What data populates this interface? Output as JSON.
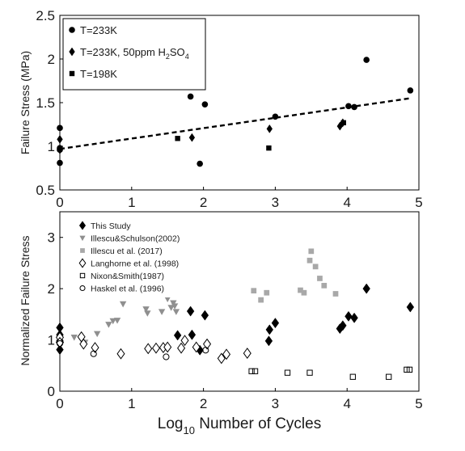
{
  "chart_data": [
    {
      "type": "scatter",
      "xlim": [
        0,
        5
      ],
      "ylim": [
        0.5,
        2.5
      ],
      "xticks": [
        "0",
        "1",
        "2",
        "3",
        "4",
        "5"
      ],
      "yticks": [
        "0.5",
        "1",
        "1.5",
        "2",
        "2.5"
      ],
      "ylabel": "Failure Stress (MPa)",
      "legend_position": "top-left",
      "grid": false,
      "series": [
        {
          "name_parts": [
            "T=233K"
          ],
          "marker": "circle",
          "color": "#000000",
          "x": [
            0,
            0,
            0,
            0,
            1.82,
            1.95,
            2.02,
            3.0,
            4.02,
            4.1,
            4.27,
            4.88
          ],
          "y": [
            1.21,
            0.98,
            0.96,
            0.81,
            1.57,
            0.8,
            1.48,
            1.34,
            1.46,
            1.45,
            1.99,
            1.64
          ]
        },
        {
          "name_parts": [
            "T=233K, 50ppm H",
            "2",
            "SO",
            "4"
          ],
          "marker": "diamond",
          "color": "#000000",
          "x": [
            0,
            0,
            1.84,
            2.92,
            3.9,
            3.94
          ],
          "y": [
            1.08,
            0.96,
            1.1,
            1.2,
            1.23,
            1.27
          ]
        },
        {
          "name_parts": [
            "T=198K"
          ],
          "marker": "square",
          "color": "#000000",
          "x": [
            1.64,
            2.91,
            3.95
          ],
          "y": [
            1.09,
            0.98,
            1.27
          ]
        }
      ],
      "trendline": {
        "style": "dashed",
        "x": [
          0,
          4.88
        ],
        "y": [
          0.97,
          1.55
        ]
      }
    },
    {
      "type": "scatter",
      "xlim": [
        0,
        5
      ],
      "ylim": [
        0,
        3.5
      ],
      "xticks": [
        "0",
        "1",
        "2",
        "3",
        "4",
        "5"
      ],
      "yticks": [
        "0",
        "1",
        "2",
        "3"
      ],
      "ylabel": "Normalized Failure Stress",
      "xlabel_parts": [
        "Log",
        "10",
        " Number of Cycles"
      ],
      "legend_position": "top-left",
      "grid": false,
      "series": [
        {
          "name": "This Study",
          "marker": "diamond-filled",
          "color": "#000000",
          "x": [
            0,
            0,
            0,
            0,
            0,
            1.64,
            1.82,
            1.84,
            1.95,
            2.02,
            2.91,
            2.92,
            3.0,
            3.9,
            3.94,
            4.02,
            4.1,
            4.27,
            4.88
          ],
          "y": [
            1.24,
            1.1,
            0.98,
            0.96,
            0.81,
            1.09,
            1.56,
            1.1,
            0.8,
            1.48,
            0.98,
            1.2,
            1.33,
            1.22,
            1.28,
            1.46,
            1.43,
            2.0,
            1.64
          ]
        },
        {
          "name": "Illescu&Schulson(2002)",
          "marker": "triangle-down",
          "color": "#8f8f8f",
          "x": [
            0.2,
            0.35,
            0.52,
            0.68,
            0.74,
            0.8,
            0.88,
            1.2,
            1.22,
            1.42,
            1.5,
            1.55,
            1.58,
            1.6,
            1.62
          ],
          "y": [
            1.05,
            0.95,
            1.12,
            1.3,
            1.37,
            1.38,
            1.7,
            1.6,
            1.52,
            1.55,
            1.8,
            1.63,
            1.72,
            1.66,
            1.55
          ]
        },
        {
          "name": "Illescu et al. (2017)",
          "marker": "square",
          "color": "#a8a8a8",
          "x": [
            2.7,
            2.8,
            2.88,
            3.35,
            3.4,
            3.48,
            3.5,
            3.56,
            3.62,
            3.68,
            3.84
          ],
          "y": [
            1.96,
            1.78,
            1.92,
            1.97,
            1.92,
            2.55,
            2.73,
            2.43,
            2.2,
            2.06,
            1.9
          ]
        },
        {
          "name": "Langhorne et al. (1998)",
          "marker": "diamond-open",
          "color": "#000000",
          "x": [
            0,
            0,
            0.3,
            0.33,
            0.49,
            0.85,
            1.23,
            1.34,
            1.44,
            1.5,
            1.69,
            1.74,
            1.9,
            2.05,
            2.25,
            2.32,
            2.61
          ],
          "y": [
            1.05,
            0.95,
            1.06,
            0.92,
            0.85,
            0.73,
            0.83,
            0.84,
            0.85,
            0.86,
            0.84,
            0.99,
            0.86,
            0.92,
            0.64,
            0.72,
            0.74
          ]
        },
        {
          "name": "Nixon&Smith(1987)",
          "marker": "square-open",
          "color": "#000000",
          "x": [
            2.67,
            2.72,
            3.17,
            3.48,
            4.08,
            4.58,
            4.83,
            4.87
          ],
          "y": [
            0.39,
            0.39,
            0.36,
            0.36,
            0.28,
            0.28,
            0.42,
            0.42
          ]
        },
        {
          "name": "Haskel et al. (1996)",
          "marker": "circle-open",
          "color": "#000000",
          "x": [
            0,
            0.47,
            1.48,
            2.03
          ],
          "y": [
            0.93,
            0.73,
            0.67,
            0.8
          ]
        }
      ]
    }
  ]
}
